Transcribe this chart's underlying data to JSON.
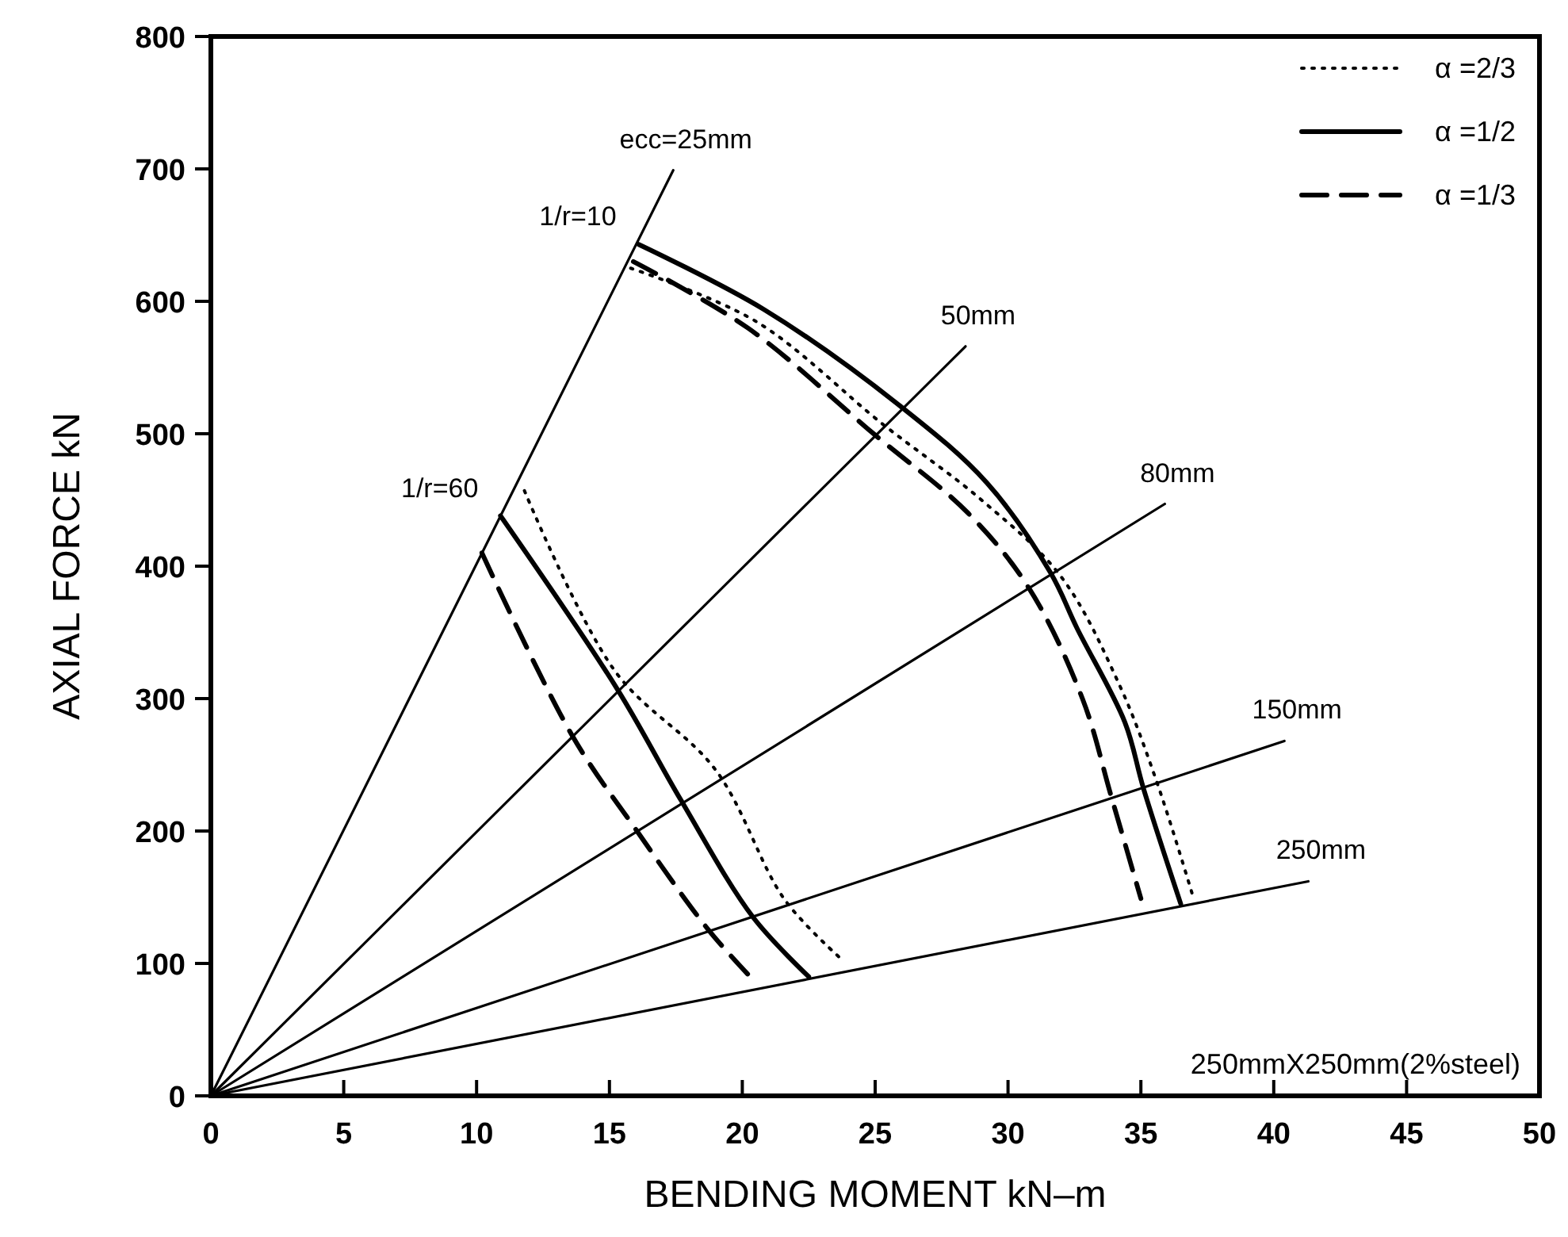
{
  "chart_data": {
    "type": "line",
    "xlabel": "BENDING MOMENT kN–m",
    "ylabel": "AXIAL FORCE kN",
    "xlim": [
      0,
      50
    ],
    "xticks": [
      0,
      5,
      10,
      15,
      20,
      25,
      30,
      35,
      40,
      45,
      50
    ],
    "ylim": [
      0,
      800
    ],
    "yticks": [
      0,
      100,
      200,
      300,
      400,
      500,
      600,
      700,
      800
    ],
    "grid": false,
    "legend": "top right",
    "marker": "none",
    "series": [
      {
        "color": "#000000",
        "x": [
          0,
          17.4
        ],
        "values": [
          0,
          699
        ]
      },
      {
        "color": "#000000",
        "x": [
          0,
          28.4
        ],
        "values": [
          0,
          566
        ]
      },
      {
        "color": "#000000",
        "x": [
          0,
          35.9
        ],
        "values": [
          0,
          447
        ]
      },
      {
        "color": "#000000",
        "x": [
          0,
          40.4
        ],
        "values": [
          0,
          268
        ]
      },
      {
        "color": "#000000",
        "x": [
          0,
          41.3
        ],
        "values": [
          0,
          162
        ]
      },
      {
        "name": "α =2/3",
        "color": "#000000",
        "line_style": "dotted",
        "x": [
          15.8,
          20.5,
          25.3,
          29.0,
          32.0,
          34.2,
          35.6,
          37.0
        ],
        "values": [
          625,
          585,
          507,
          450,
          392,
          310,
          237,
          148
        ]
      },
      {
        "name": "α =1/2",
        "color": "#000000",
        "line_style": "solid",
        "x": [
          16.1,
          20.8,
          26.0,
          29.2,
          31.6,
          32.6,
          34.4,
          35.1,
          36.5
        ],
        "values": [
          643,
          594,
          520,
          463,
          395,
          353,
          282,
          232,
          145
        ]
      },
      {
        "name": "α =1/3",
        "color": "#000000",
        "line_style": "dashed",
        "x": [
          15.9,
          20.2,
          25.0,
          28.5,
          30.8,
          32.8,
          33.9,
          35.0
        ],
        "values": [
          630,
          580,
          499,
          440,
          383,
          300,
          225,
          149
        ]
      },
      {
        "color": "#000000",
        "line_style": "dotted",
        "x": [
          11.8,
          15.2,
          19.0,
          21.6,
          23.8
        ],
        "values": [
          457,
          321,
          246,
          148,
          102
        ]
      },
      {
        "color": "#000000",
        "line_style": "solid",
        "x": [
          10.9,
          15.3,
          17.7,
          20.4,
          22.5
        ],
        "values": [
          438,
          307,
          223,
          135,
          90
        ]
      },
      {
        "color": "#000000",
        "line_style": "dashed",
        "x": [
          10.2,
          13.6,
          16.0,
          18.7,
          20.2
        ],
        "values": [
          410,
          272,
          201,
          126,
          92
        ]
      }
    ],
    "annotations": [
      {
        "text": "ecc=25mm",
        "x": 17.4,
        "y": 699
      },
      {
        "text": "50mm",
        "x": 28.4,
        "y": 566
      },
      {
        "text": "80mm",
        "x": 35.9,
        "y": 447
      },
      {
        "text": "150mm",
        "x": 40.4,
        "y": 268
      },
      {
        "text": "250mm",
        "x": 41.3,
        "y": 162
      },
      {
        "text": "1/r=10",
        "x": 16.1,
        "y": 643
      },
      {
        "text": "1/r=60",
        "x": 10.9,
        "y": 438
      },
      "250mmX250mm(2%steel)"
    ]
  }
}
